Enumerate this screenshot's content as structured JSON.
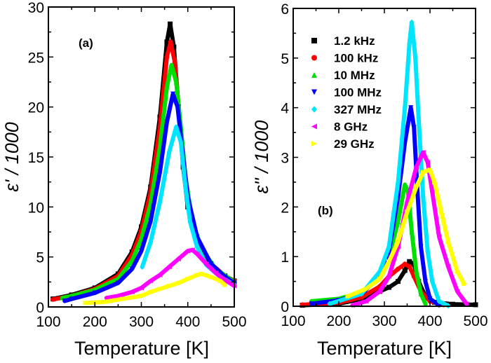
{
  "chart_data": [
    {
      "type": "scatter",
      "panel_label": "(a)",
      "xlabel": "Temperature [K]",
      "ylabel": "ε' / 1000",
      "xlim": [
        100,
        500
      ],
      "ylim": [
        0,
        30
      ],
      "xticks": [
        100,
        200,
        300,
        400,
        500
      ],
      "yticks": [
        0,
        5,
        10,
        15,
        20,
        25,
        30
      ],
      "grid": false,
      "series": [
        {
          "name": "1.2 kHz",
          "color": "#000000",
          "marker": "square",
          "points": [
            [
              110,
              0.8
            ],
            [
              150,
              1.2
            ],
            [
              200,
              1.9
            ],
            [
              250,
              3.3
            ],
            [
              280,
              5.5
            ],
            [
              300,
              8
            ],
            [
              320,
              12
            ],
            [
              340,
              19
            ],
            [
              355,
              26.5
            ],
            [
              362,
              28.3
            ],
            [
              370,
              26
            ],
            [
              380,
              20
            ],
            [
              390,
              14
            ],
            [
              400,
              10
            ],
            [
              420,
              6.5
            ],
            [
              450,
              4.3
            ],
            [
              480,
              3.1
            ],
            [
              500,
              2.6
            ]
          ]
        },
        {
          "name": "100 kHz",
          "color": "#ff0000",
          "marker": "circle",
          "points": [
            [
              110,
              0.75
            ],
            [
              150,
              1.1
            ],
            [
              200,
              1.8
            ],
            [
              250,
              3.1
            ],
            [
              280,
              5.2
            ],
            [
              300,
              7.6
            ],
            [
              320,
              11.5
            ],
            [
              340,
              18
            ],
            [
              355,
              25
            ],
            [
              363,
              26.5
            ],
            [
              372,
              24.5
            ],
            [
              380,
              20
            ],
            [
              390,
              14.5
            ],
            [
              400,
              10.5
            ],
            [
              420,
              6.8
            ],
            [
              450,
              4.3
            ],
            [
              480,
              3.1
            ],
            [
              500,
              2.6
            ]
          ]
        },
        {
          "name": "10 MHz",
          "color": "#00e000",
          "marker": "triangle-up",
          "points": [
            [
              130,
              0.9
            ],
            [
              150,
              1.1
            ],
            [
              200,
              1.7
            ],
            [
              250,
              2.8
            ],
            [
              280,
              4.6
            ],
            [
              300,
              6.8
            ],
            [
              320,
              10.3
            ],
            [
              340,
              16
            ],
            [
              355,
              22
            ],
            [
              365,
              24.2
            ],
            [
              375,
              22.5
            ],
            [
              385,
              18
            ],
            [
              395,
              13
            ],
            [
              410,
              8.5
            ],
            [
              430,
              5.8
            ],
            [
              460,
              3.8
            ],
            [
              500,
              2.5
            ]
          ]
        },
        {
          "name": "100 MHz",
          "color": "#0000ff",
          "marker": "triangle-down",
          "points": [
            [
              135,
              0.6
            ],
            [
              150,
              0.8
            ],
            [
              200,
              1.4
            ],
            [
              250,
              2.4
            ],
            [
              280,
              3.8
            ],
            [
              300,
              5.6
            ],
            [
              320,
              8.6
            ],
            [
              340,
              13.5
            ],
            [
              355,
              18.5
            ],
            [
              368,
              21.3
            ],
            [
              378,
              20
            ],
            [
              390,
              15
            ],
            [
              400,
              11
            ],
            [
              420,
              7
            ],
            [
              450,
              4.3
            ],
            [
              480,
              3
            ],
            [
              500,
              2.4
            ]
          ]
        },
        {
          "name": "327 MHz",
          "color": "#00e5ff",
          "marker": "diamond",
          "points": [
            [
              302,
              4
            ],
            [
              320,
              6.5
            ],
            [
              340,
              10.5
            ],
            [
              360,
              15.5
            ],
            [
              375,
              18
            ],
            [
              385,
              16.5
            ],
            [
              395,
              12
            ],
            [
              405,
              8.5
            ],
            [
              420,
              6
            ],
            [
              440,
              4.2
            ],
            [
              470,
              3
            ],
            [
              500,
              2.2
            ]
          ]
        },
        {
          "name": "8 GHz",
          "color": "#ff00ff",
          "marker": "triangle-left",
          "points": [
            [
              225,
              0.9
            ],
            [
              250,
              1.1
            ],
            [
              280,
              1.5
            ],
            [
              300,
              1.9
            ],
            [
              320,
              2.6
            ],
            [
              340,
              3.2
            ],
            [
              360,
              4
            ],
            [
              380,
              4.8
            ],
            [
              400,
              5.6
            ],
            [
              410,
              5.7
            ],
            [
              420,
              5.3
            ],
            [
              440,
              4.3
            ],
            [
              460,
              3.4
            ],
            [
              480,
              2.7
            ],
            [
              500,
              2.1
            ]
          ]
        },
        {
          "name": "29 GHz",
          "color": "#ffff00",
          "marker": "triangle-right",
          "points": [
            [
              180,
              0.4
            ],
            [
              220,
              0.5
            ],
            [
              260,
              0.8
            ],
            [
              300,
              1.1
            ],
            [
              320,
              1.5
            ],
            [
              340,
              1.8
            ],
            [
              360,
              2.1
            ],
            [
              380,
              2.4
            ],
            [
              400,
              2.8
            ],
            [
              420,
              3.2
            ],
            [
              430,
              3.3
            ],
            [
              450,
              3.0
            ],
            [
              470,
              2.6
            ],
            [
              480,
              2.2
            ]
          ]
        }
      ]
    },
    {
      "type": "scatter",
      "panel_label": "(b)",
      "xlabel": "Temperature [K]",
      "ylabel": "ε'' / 1000",
      "xlim": [
        100,
        500
      ],
      "ylim": [
        0,
        6
      ],
      "xticks": [
        100,
        200,
        300,
        400,
        500
      ],
      "yticks": [
        0,
        1,
        2,
        3,
        4,
        5,
        6
      ],
      "grid": false,
      "legend": "top-left",
      "series": [
        {
          "name": "1.2 kHz",
          "color": "#000000",
          "marker": "square",
          "points": [
            [
              120,
              0.02
            ],
            [
              200,
              0.05
            ],
            [
              250,
              0.15
            ],
            [
              290,
              0.3
            ],
            [
              310,
              0.38
            ],
            [
              330,
              0.5
            ],
            [
              345,
              0.72
            ],
            [
              355,
              0.9
            ],
            [
              365,
              0.85
            ],
            [
              375,
              0.5
            ],
            [
              390,
              0.2
            ],
            [
              410,
              0.08
            ],
            [
              450,
              0.04
            ],
            [
              500,
              0.03
            ]
          ]
        },
        {
          "name": "100 kHz",
          "color": "#ff0000",
          "marker": "circle",
          "points": [
            [
              120,
              0.03
            ],
            [
              200,
              0.07
            ],
            [
              250,
              0.18
            ],
            [
              290,
              0.4
            ],
            [
              310,
              0.6
            ],
            [
              330,
              0.75
            ],
            [
              345,
              0.85
            ],
            [
              355,
              0.8
            ],
            [
              365,
              0.6
            ],
            [
              380,
              0.3
            ],
            [
              400,
              0.1
            ],
            [
              430,
              0.03
            ]
          ]
        },
        {
          "name": "10 MHz",
          "color": "#00e000",
          "marker": "triangle-up",
          "points": [
            [
              140,
              0.1
            ],
            [
              200,
              0.15
            ],
            [
              250,
              0.28
            ],
            [
              290,
              0.6
            ],
            [
              310,
              1.0
            ],
            [
              330,
              1.7
            ],
            [
              345,
              2.45
            ],
            [
              352,
              2.3
            ],
            [
              360,
              1.5
            ],
            [
              370,
              0.7
            ],
            [
              380,
              0.25
            ],
            [
              390,
              0.05
            ]
          ]
        },
        {
          "name": "100 MHz",
          "color": "#0000ff",
          "marker": "triangle-down",
          "points": [
            [
              140,
              0.05
            ],
            [
              200,
              0.12
            ],
            [
              250,
              0.25
            ],
            [
              290,
              0.6
            ],
            [
              310,
              1.1
            ],
            [
              330,
              2.2
            ],
            [
              345,
              3.3
            ],
            [
              358,
              4.0
            ],
            [
              365,
              3.6
            ],
            [
              372,
              2.4
            ],
            [
              380,
              1.2
            ],
            [
              390,
              0.5
            ],
            [
              400,
              0.15
            ],
            [
              420,
              0.02
            ]
          ]
        },
        {
          "name": "327 MHz",
          "color": "#00e5ff",
          "marker": "diamond",
          "points": [
            [
              180,
              0.05
            ],
            [
              250,
              0.25
            ],
            [
              290,
              0.7
            ],
            [
              310,
              1.2
            ],
            [
              330,
              2.5
            ],
            [
              345,
              4
            ],
            [
              355,
              5.3
            ],
            [
              360,
              5.72
            ],
            [
              368,
              5.0
            ],
            [
              375,
              3.8
            ],
            [
              385,
              2.2
            ],
            [
              395,
              1.1
            ],
            [
              405,
              0.5
            ],
            [
              420,
              0.1
            ],
            [
              440,
              0.01
            ]
          ]
        },
        {
          "name": "8 GHz",
          "color": "#ff00ff",
          "marker": "triangle-left",
          "points": [
            [
              230,
              0.02
            ],
            [
              260,
              0.1
            ],
            [
              290,
              0.3
            ],
            [
              310,
              0.6
            ],
            [
              330,
              1.2
            ],
            [
              350,
              2.1
            ],
            [
              370,
              2.8
            ],
            [
              385,
              3.1
            ],
            [
              395,
              2.9
            ],
            [
              405,
              2.3
            ],
            [
              420,
              1.4
            ],
            [
              440,
              0.8
            ],
            [
              460,
              0.3
            ],
            [
              480,
              0.05
            ]
          ]
        },
        {
          "name": "29 GHz",
          "color": "#ffff00",
          "marker": "triangle-right",
          "points": [
            [
              220,
              0.2
            ],
            [
              260,
              0.35
            ],
            [
              290,
              0.55
            ],
            [
              310,
              0.9
            ],
            [
              330,
              1.3
            ],
            [
              350,
              1.9
            ],
            [
              370,
              2.4
            ],
            [
              385,
              2.7
            ],
            [
              400,
              2.75
            ],
            [
              410,
              2.5
            ],
            [
              425,
              1.9
            ],
            [
              440,
              1.3
            ],
            [
              460,
              0.7
            ],
            [
              475,
              0.45
            ]
          ]
        }
      ]
    }
  ]
}
